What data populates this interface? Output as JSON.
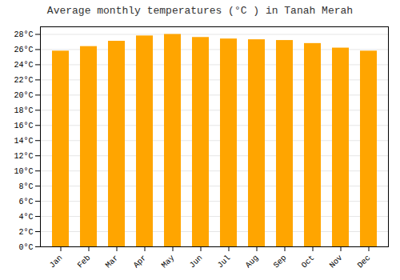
{
  "chart_data": {
    "type": "bar",
    "title": "Average monthly temperatures (°C ) in Tanah Merah",
    "categories": [
      "Jan",
      "Feb",
      "Mar",
      "Apr",
      "May",
      "Jun",
      "Jul",
      "Aug",
      "Sep",
      "Oct",
      "Nov",
      "Dec"
    ],
    "values": [
      25.8,
      26.4,
      27.1,
      27.8,
      28.0,
      27.6,
      27.4,
      27.3,
      27.2,
      26.8,
      26.2,
      25.8
    ],
    "color": "#FFA500",
    "ylim": [
      0,
      29
    ],
    "yticks": [
      {
        "value": 0,
        "label": "0°C"
      },
      {
        "value": 2,
        "label": "2°C"
      },
      {
        "value": 4,
        "label": "4°C"
      },
      {
        "value": 6,
        "label": "6°C"
      },
      {
        "value": 8,
        "label": "8°C"
      },
      {
        "value": 10,
        "label": "10°C"
      },
      {
        "value": 12,
        "label": "12°C"
      },
      {
        "value": 14,
        "label": "14°C"
      },
      {
        "value": 16,
        "label": "16°C"
      },
      {
        "value": 18,
        "label": "18°C"
      },
      {
        "value": 20,
        "label": "20°C"
      },
      {
        "value": 22,
        "label": "22°C"
      },
      {
        "value": 24,
        "label": "24°C"
      },
      {
        "value": 26,
        "label": "26°C"
      },
      {
        "value": 28,
        "label": "28°C"
      }
    ],
    "grid": true
  }
}
